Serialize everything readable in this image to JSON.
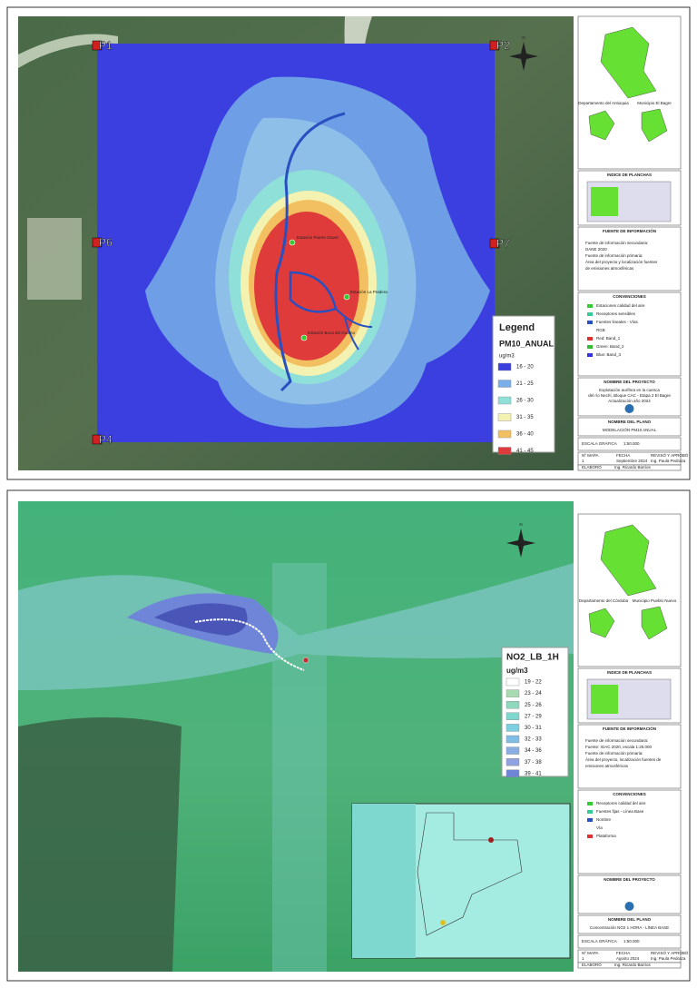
{
  "maps": [
    {
      "points": [
        "P1",
        "P2",
        "P6",
        "P7",
        "P4"
      ],
      "legend": {
        "title": "Legend",
        "layer": "PM10_ANUAL",
        "units": "ug/m3",
        "classes": [
          {
            "label": "16 - 20",
            "color": "#3b3fe0"
          },
          {
            "label": "21 - 25",
            "color": "#7aaee8"
          },
          {
            "label": "26 - 30",
            "color": "#8fe0d8"
          },
          {
            "label": "31 - 35",
            "color": "#f4f2b0"
          },
          {
            "label": "36 - 40",
            "color": "#f2c060"
          },
          {
            "label": "41 - 45",
            "color": "#e03b3b"
          }
        ]
      },
      "stations": [
        "Estación Puerto Claver",
        "Estación La Pradera",
        "Estación Boca del Guamo"
      ],
      "panel": {
        "department": "Departamento del Antioquia",
        "municipality": "Municipio El Bagre",
        "index_title": "INDICE DE PLANCHAS",
        "source_title": "FUENTE DE INFORMACIÓN",
        "source_text": [
          "Fuente de información secundaria:",
          "DANE 2020",
          "Fuente de información primaria:",
          "Área del proyecto y localización fuentes",
          "de emisiones atmosféricas"
        ],
        "conventions_title": "CONVENCIONES",
        "conventions": [
          "Estaciones calidad del aire",
          "Receptores sensibles",
          "Fuentes lineales - Vías",
          "RGB",
          "Red: Band_1",
          "Green: Band_2",
          "Blue: Band_3"
        ],
        "project_title": "NOMBRE DEL PROYECTO",
        "project_text": [
          "Explotación aurífera en la cuenca",
          "del río Nechí, Bloque CAC - Etapa 2 El Bagre",
          "Actualización año 2024"
        ],
        "plan_title": "NOMBRE DEL PLANO",
        "plan_text": "MODELACIÓN PM10 ANUAL",
        "scale_title": "ESCALA GRÁFICA",
        "scale": "1:50.000",
        "table_headers": [
          "Nº MAPA",
          "FECHA",
          "REVISÓ Y APROBÓ"
        ],
        "table_values": [
          "1",
          "Septiembre 2024",
          "Ing. Paula Pedraza"
        ],
        "author_title": "ELABORÓ",
        "author": "Ing. Ricardo Barrios"
      }
    },
    {
      "legend": {
        "layer": "NO2_LB_1H",
        "units": "ug/m3",
        "classes": [
          {
            "label": "19 - 22",
            "color": "#ffffff"
          },
          {
            "label": "23 - 24",
            "color": "#a8dcb0"
          },
          {
            "label": "25 - 26",
            "color": "#8fd8bc"
          },
          {
            "label": "27 - 29",
            "color": "#7fd8d0"
          },
          {
            "label": "30 - 31",
            "color": "#7ccfe0"
          },
          {
            "label": "32 - 33",
            "color": "#80bde2"
          },
          {
            "label": "34 - 36",
            "color": "#8aaee2"
          },
          {
            "label": "37 - 38",
            "color": "#90a2e0"
          },
          {
            "label": "39 - 41",
            "color": "#6f86d8"
          }
        ]
      },
      "panel": {
        "department": "Departamento del Córdoba",
        "municipality": "Municipio Pueblo Nuevo",
        "index_title": "INDICE DE PLANCHAS",
        "source_title": "FUENTE DE INFORMACIÓN",
        "source_text": [
          "Fuente de información secundaria:",
          "Fuente: IGAC 2020, escala 1:25.000",
          "Fuente de información primaria:",
          "Área del proyecto, localización fuentes de",
          "emisiones atmosféricas"
        ],
        "conventions_title": "CONVENCIONES",
        "conventions": [
          "Receptores calidad del aire",
          "Fuentes fijas - Línea Base",
          "Nombre",
          "Vía",
          "Plataforma"
        ],
        "project_title": "NOMBRE DEL PROYECTO",
        "plan_title": "NOMBRE DEL PLANO",
        "plan_text": "Concentración NO2 1 HORA - LÍNEA BASE",
        "scale_title": "ESCALA GRÁFICA",
        "scale": "1:50.000",
        "table_headers": [
          "Nº MAPA",
          "FECHA",
          "REVISÓ Y APROBÓ"
        ],
        "table_values": [
          "1",
          "Agosto 2024",
          "Ing. Paula Pedraza"
        ],
        "author_title": "ELABORÓ",
        "author": "Ing. Ricardo Barrios"
      }
    }
  ]
}
